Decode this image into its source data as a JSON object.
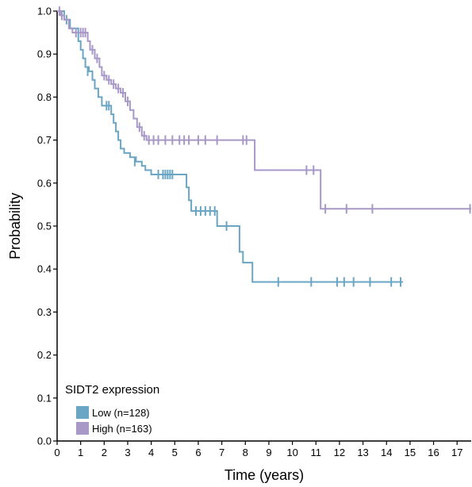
{
  "chart_data": {
    "type": "line",
    "subtype": "kaplan-meier",
    "xlabel": "Time (years)",
    "ylabel": "Probability",
    "xlim": [
      0,
      17.6
    ],
    "ylim": [
      0,
      1.0
    ],
    "x_ticks": [
      0,
      1,
      2,
      3,
      4,
      5,
      6,
      7,
      8,
      9,
      10,
      11,
      12,
      13,
      14,
      15,
      16,
      17
    ],
    "y_ticks": [
      0.0,
      0.1,
      0.2,
      0.3,
      0.4,
      0.5,
      0.6,
      0.7,
      0.8,
      0.9,
      1.0
    ],
    "y_tick_labels": [
      "0.0",
      "0.1",
      "0.2",
      "0.3",
      "0.4",
      "0.5",
      "0.6",
      "0.7",
      "0.8",
      "0.9",
      "1.0"
    ],
    "grid": false,
    "legend": {
      "title": "SIDT2 expression",
      "placement": "bottom-left"
    },
    "series": [
      {
        "name": "Low (n=128)",
        "color": "#6aa6c4",
        "steps": [
          [
            0,
            1.0
          ],
          [
            0.3,
            0.98
          ],
          [
            0.55,
            0.96
          ],
          [
            0.9,
            0.93
          ],
          [
            1.0,
            0.91
          ],
          [
            1.1,
            0.89
          ],
          [
            1.2,
            0.87
          ],
          [
            1.35,
            0.86
          ],
          [
            1.5,
            0.84
          ],
          [
            1.6,
            0.82
          ],
          [
            1.75,
            0.8
          ],
          [
            1.9,
            0.78
          ],
          [
            2.3,
            0.76
          ],
          [
            2.4,
            0.74
          ],
          [
            2.5,
            0.72
          ],
          [
            2.6,
            0.7
          ],
          [
            2.7,
            0.68
          ],
          [
            2.85,
            0.67
          ],
          [
            3.1,
            0.66
          ],
          [
            3.35,
            0.65
          ],
          [
            3.6,
            0.64
          ],
          [
            3.75,
            0.63
          ],
          [
            4.0,
            0.62
          ],
          [
            5.5,
            0.59
          ],
          [
            5.6,
            0.56
          ],
          [
            5.7,
            0.535
          ],
          [
            6.8,
            0.5
          ],
          [
            7.75,
            0.44
          ],
          [
            7.9,
            0.415
          ],
          [
            8.3,
            0.37
          ],
          [
            14.7,
            0.37
          ]
        ],
        "censor": [
          [
            0.4,
            0.98
          ],
          [
            1.3,
            0.86
          ],
          [
            2.1,
            0.78
          ],
          [
            2.2,
            0.78
          ],
          [
            3.3,
            0.65
          ],
          [
            4.3,
            0.62
          ],
          [
            4.5,
            0.62
          ],
          [
            4.6,
            0.62
          ],
          [
            4.7,
            0.62
          ],
          [
            4.8,
            0.62
          ],
          [
            4.9,
            0.62
          ],
          [
            5.9,
            0.535
          ],
          [
            6.1,
            0.535
          ],
          [
            6.3,
            0.535
          ],
          [
            6.5,
            0.535
          ],
          [
            6.7,
            0.535
          ],
          [
            7.2,
            0.5
          ],
          [
            9.4,
            0.37
          ],
          [
            10.8,
            0.37
          ],
          [
            11.9,
            0.37
          ],
          [
            12.2,
            0.37
          ],
          [
            12.6,
            0.37
          ],
          [
            13.3,
            0.37
          ],
          [
            14.2,
            0.37
          ],
          [
            14.6,
            0.37
          ]
        ]
      },
      {
        "name": "High (n=163)",
        "color": "#a898c8",
        "steps": [
          [
            0,
            1.0
          ],
          [
            0.15,
            0.99
          ],
          [
            0.3,
            0.98
          ],
          [
            0.5,
            0.96
          ],
          [
            0.65,
            0.95
          ],
          [
            1.3,
            0.93
          ],
          [
            1.4,
            0.91
          ],
          [
            1.6,
            0.89
          ],
          [
            1.8,
            0.87
          ],
          [
            1.9,
            0.85
          ],
          [
            2.1,
            0.84
          ],
          [
            2.3,
            0.83
          ],
          [
            2.5,
            0.82
          ],
          [
            2.7,
            0.81
          ],
          [
            2.9,
            0.79
          ],
          [
            3.1,
            0.77
          ],
          [
            3.25,
            0.75
          ],
          [
            3.4,
            0.73
          ],
          [
            3.6,
            0.71
          ],
          [
            3.8,
            0.7
          ],
          [
            8.4,
            0.63
          ],
          [
            11.2,
            0.54
          ],
          [
            17.6,
            0.54
          ]
        ],
        "censor": [
          [
            0.1,
            1.0
          ],
          [
            0.2,
            0.99
          ],
          [
            0.8,
            0.95
          ],
          [
            1.0,
            0.95
          ],
          [
            1.1,
            0.95
          ],
          [
            1.2,
            0.95
          ],
          [
            1.5,
            0.91
          ],
          [
            1.7,
            0.89
          ],
          [
            2.0,
            0.85
          ],
          [
            2.2,
            0.84
          ],
          [
            2.4,
            0.83
          ],
          [
            2.6,
            0.82
          ],
          [
            2.8,
            0.81
          ],
          [
            3.0,
            0.79
          ],
          [
            3.5,
            0.73
          ],
          [
            3.7,
            0.71
          ],
          [
            3.9,
            0.7
          ],
          [
            4.1,
            0.7
          ],
          [
            4.3,
            0.7
          ],
          [
            4.6,
            0.7
          ],
          [
            4.9,
            0.7
          ],
          [
            5.2,
            0.7
          ],
          [
            5.4,
            0.7
          ],
          [
            5.6,
            0.7
          ],
          [
            6.0,
            0.7
          ],
          [
            6.3,
            0.7
          ],
          [
            6.8,
            0.7
          ],
          [
            7.9,
            0.7
          ],
          [
            8.05,
            0.7
          ],
          [
            10.6,
            0.63
          ],
          [
            10.9,
            0.63
          ],
          [
            11.4,
            0.54
          ],
          [
            12.3,
            0.54
          ],
          [
            13.4,
            0.54
          ],
          [
            17.55,
            0.54
          ]
        ]
      }
    ]
  }
}
